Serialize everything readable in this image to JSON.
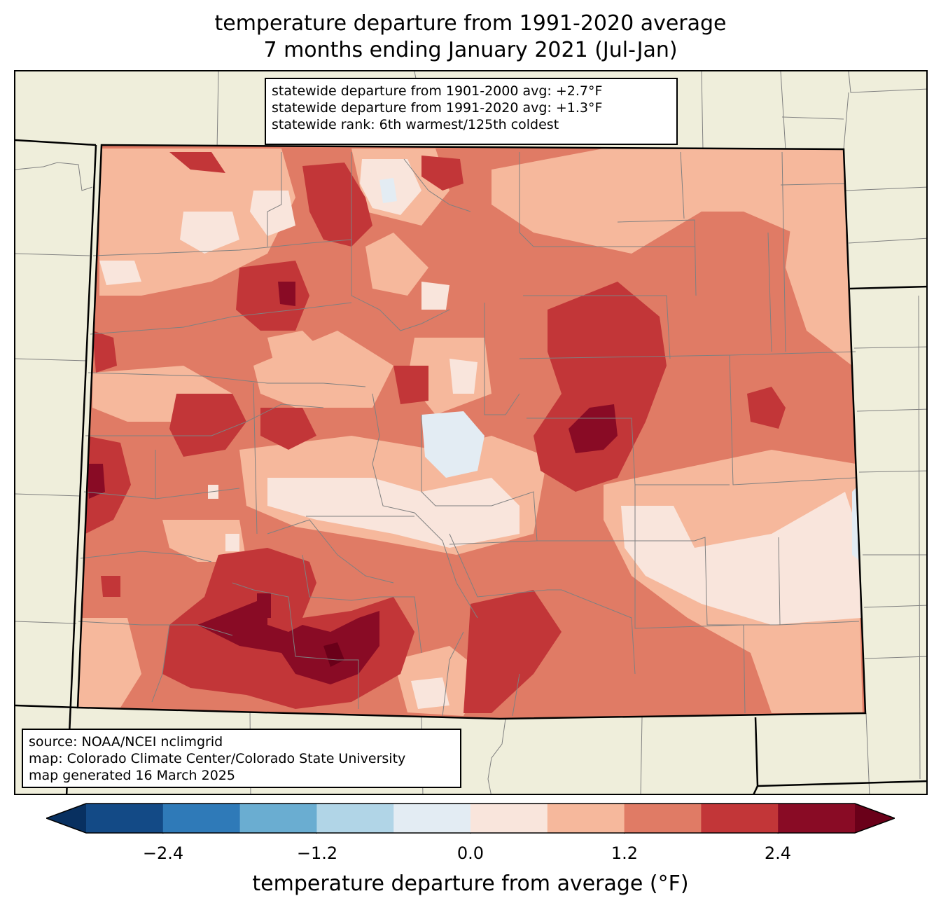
{
  "title": {
    "line1": "temperature departure from 1991-2020 average",
    "line2": "7 months ending January 2021 (Jul-Jan)"
  },
  "stats": {
    "line1": "statewide departure from 1901-2000 avg: +2.7°F",
    "line2": "statewide departure from 1991-2020 avg: +1.3°F",
    "line3": "statewide rank: 6th warmest/125th coldest"
  },
  "source": {
    "line1": "source: NOAA/NCEI nclimgrid",
    "line2": "map: Colorado Climate Center/Colorado State University",
    "line3": "map generated 16 March 2025"
  },
  "colorbar": {
    "label": "temperature departure from average (°F)",
    "ticks": [
      "−2.4",
      "−1.2",
      "0.0",
      "1.2",
      "2.4"
    ],
    "bins": [
      -3.0,
      -2.4,
      -1.8,
      -1.2,
      -0.6,
      0.0,
      0.6,
      1.2,
      1.8,
      2.4,
      3.0
    ],
    "colors": [
      "#083060",
      "#134a86",
      "#2f7ab8",
      "#6aadd1",
      "#b1d5e7",
      "#e3ecf3",
      "#f9e5dc",
      "#f6b89c",
      "#e07b65",
      "#c23638",
      "#890b25",
      "#6a0019"
    ]
  },
  "map_colors": {
    "land_background": "#efeedb",
    "state_outline": "#000000",
    "county_lines": "#808080"
  }
}
